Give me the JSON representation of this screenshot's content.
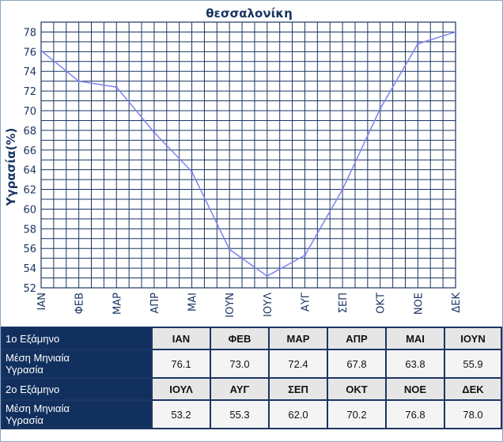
{
  "chart_data": {
    "type": "line",
    "title": "θεσσαλονίκη",
    "xlabel": "",
    "ylabel": "Υγρασία(%)",
    "categories": [
      "ΙΑΝ",
      "ΦΕΒ",
      "ΜΑΡ",
      "ΑΠΡ",
      "ΜΑΙ",
      "ΙΟΥΝ",
      "ΙΟΥΛ",
      "ΑΥΓ",
      "ΣΕΠ",
      "ΟΚΤ",
      "ΝΟΕ",
      "ΔΕΚ"
    ],
    "values": [
      76.1,
      73.0,
      72.4,
      67.8,
      63.8,
      55.9,
      53.2,
      55.3,
      62.0,
      70.2,
      76.8,
      78.0
    ],
    "ylim": [
      52,
      79
    ],
    "yticks": [
      52,
      54,
      56,
      58,
      60,
      62,
      64,
      66,
      68,
      70,
      72,
      74,
      76,
      78
    ],
    "grid": true,
    "line_color": "#8080f0",
    "grid_color": "#1b3663",
    "label_color": "#1b3663"
  },
  "table": {
    "rows": [
      {
        "header": "1ο Εξάμηνο",
        "cells": [
          "ΙΑΝ",
          "ΦΕΒ",
          "ΜΑΡ",
          "ΑΠΡ",
          "ΜΑΙ",
          "ΙΟΥΝ"
        ]
      },
      {
        "header": "Μέση Μηνιαία Υγρασία",
        "cells": [
          "76.1",
          "73.0",
          "72.4",
          "67.8",
          "63.8",
          "55.9"
        ]
      },
      {
        "header": "2ο Εξάμηνο",
        "cells": [
          "ΙΟΥΛ",
          "ΑΥΓ",
          "ΣΕΠ",
          "ΟΚΤ",
          "ΝΟΕ",
          "ΔΕΚ"
        ]
      },
      {
        "header": "Μέση Μηνιαία Υγρασία",
        "cells": [
          "53.2",
          "55.3",
          "62.0",
          "70.2",
          "76.8",
          "78.0"
        ]
      }
    ]
  }
}
